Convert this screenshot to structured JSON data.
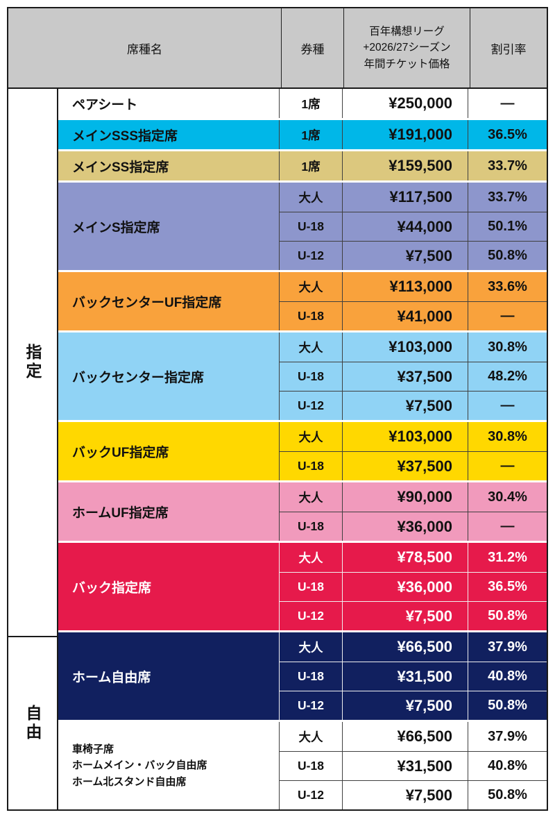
{
  "chart_data": {
    "type": "table",
    "header": {
      "seat_name": "席種名",
      "ticket_type": "券種",
      "price": "百年構想リーグ\n+2026/27シーズン\n年間チケット価格",
      "discount": "割引率"
    },
    "categories": [
      {
        "label": "指定"
      },
      {
        "label": "自由"
      }
    ],
    "colors": {
      "header_bg": "#c9c9c9",
      "border": "#1a1a1a",
      "line_dark": "#3f3f3f",
      "line_light": "#f0f0f0"
    },
    "groups": [
      {
        "name": "ペアシート",
        "bg": "#ffffff",
        "fg": "#111111",
        "line": "#3f3f3f",
        "rows": [
          {
            "type": "1席",
            "price": "¥250,000",
            "discount": "—"
          }
        ]
      },
      {
        "name": "メインSSS指定席",
        "bg": "#00b7e8",
        "fg": "#111111",
        "line": "#3f3f3f",
        "rows": [
          {
            "type": "1席",
            "price": "¥191,000",
            "discount": "36.5%"
          }
        ]
      },
      {
        "name": "メインSS指定席",
        "bg": "#dcc87e",
        "fg": "#111111",
        "line": "#3f3f3f",
        "rows": [
          {
            "type": "1席",
            "price": "¥159,500",
            "discount": "33.7%"
          }
        ]
      },
      {
        "name": "メインS指定席",
        "bg": "#8d96cc",
        "fg": "#111111",
        "line": "#3f3f3f",
        "rows": [
          {
            "type": "大人",
            "price": "¥117,500",
            "discount": "33.7%"
          },
          {
            "type": "U-18",
            "price": "¥44,000",
            "discount": "50.1%"
          },
          {
            "type": "U-12",
            "price": "¥7,500",
            "discount": "50.8%"
          }
        ]
      },
      {
        "name": "バックセンターUF指定席",
        "bg": "#f9a23c",
        "fg": "#111111",
        "line": "#3f3f3f",
        "rows": [
          {
            "type": "大人",
            "price": "¥113,000",
            "discount": "33.6%"
          },
          {
            "type": "U-18",
            "price": "¥41,000",
            "discount": "—"
          }
        ]
      },
      {
        "name": "バックセンター指定席",
        "bg": "#90d3f5",
        "fg": "#111111",
        "line": "#3f3f3f",
        "rows": [
          {
            "type": "大人",
            "price": "¥103,000",
            "discount": "30.8%"
          },
          {
            "type": "U-18",
            "price": "¥37,500",
            "discount": "48.2%"
          },
          {
            "type": "U-12",
            "price": "¥7,500",
            "discount": "—"
          }
        ]
      },
      {
        "name": "バックUF指定席",
        "bg": "#ffd800",
        "fg": "#111111",
        "line": "#3f3f3f",
        "rows": [
          {
            "type": "大人",
            "price": "¥103,000",
            "discount": "30.8%"
          },
          {
            "type": "U-18",
            "price": "¥37,500",
            "discount": "—"
          }
        ]
      },
      {
        "name": "ホームUF指定席",
        "bg": "#f19abc",
        "fg": "#111111",
        "line": "#3f3f3f",
        "rows": [
          {
            "type": "大人",
            "price": "¥90,000",
            "discount": "30.4%"
          },
          {
            "type": "U-18",
            "price": "¥36,000",
            "discount": "—"
          }
        ]
      },
      {
        "name": "バック指定席",
        "bg": "#e61a4b",
        "fg": "#ffffff",
        "line": "#f0f0f0",
        "rows": [
          {
            "type": "大人",
            "price": "¥78,500",
            "discount": "31.2%"
          },
          {
            "type": "U-18",
            "price": "¥36,000",
            "discount": "36.5%"
          },
          {
            "type": "U-12",
            "price": "¥7,500",
            "discount": "50.8%"
          }
        ]
      },
      {
        "name": "ホーム自由席",
        "bg": "#11205f",
        "fg": "#ffffff",
        "line": "#f0f0f0",
        "rows": [
          {
            "type": "大人",
            "price": "¥66,500",
            "discount": "37.9%"
          },
          {
            "type": "U-18",
            "price": "¥31,500",
            "discount": "40.8%"
          },
          {
            "type": "U-12",
            "price": "¥7,500",
            "discount": "50.8%"
          }
        ]
      },
      {
        "name": "車椅子席\nホームメイン・バック自由席\nホーム北スタンド自由席",
        "bg": "#ffffff",
        "fg": "#111111",
        "line": "#3f3f3f",
        "rows": [
          {
            "type": "大人",
            "price": "¥66,500",
            "discount": "37.9%"
          },
          {
            "type": "U-18",
            "price": "¥31,500",
            "discount": "40.8%"
          },
          {
            "type": "U-12",
            "price": "¥7,500",
            "discount": "50.8%"
          }
        ]
      }
    ]
  }
}
